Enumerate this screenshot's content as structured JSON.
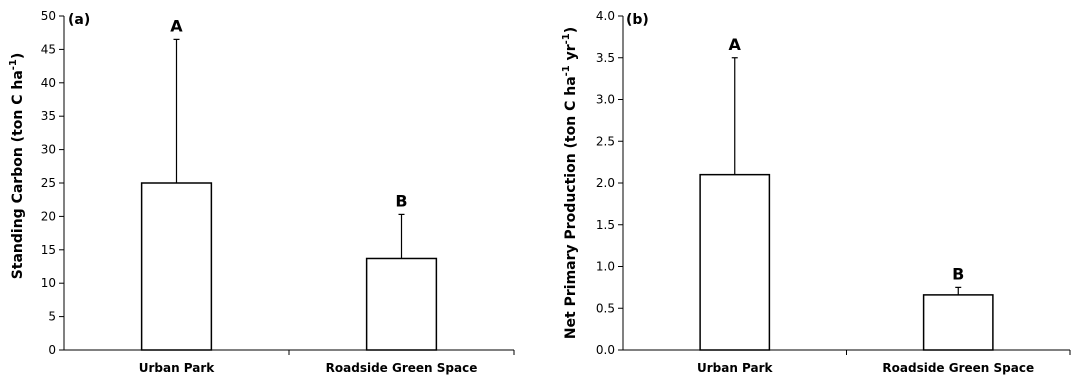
{
  "chart_data": [
    {
      "type": "bar",
      "panel_label": "(a)",
      "categories": [
        "Urban Park",
        "Roadside Green Space"
      ],
      "values": [
        25.0,
        13.7
      ],
      "error_upper": [
        46.5,
        20.3
      ],
      "significance_letters": [
        "A",
        "B"
      ],
      "ylabel": {
        "main": "Standing Carbon (ton C ha",
        "sup": "-1",
        "tail": ")"
      },
      "ylim": [
        0,
        50
      ],
      "yticks": [
        "0",
        "5",
        "10",
        "15",
        "20",
        "25",
        "30",
        "35",
        "40",
        "45",
        "50"
      ],
      "bar_fill": "#ffffff",
      "bar_stroke": "#000000"
    },
    {
      "type": "bar",
      "panel_label": "(b)",
      "categories": [
        "Urban Park",
        "Roadside Green Space"
      ],
      "values": [
        2.1,
        0.66
      ],
      "error_upper": [
        3.5,
        0.75
      ],
      "significance_letters": [
        "A",
        "B"
      ],
      "ylabel": {
        "main": "Net Primary Production (ton C ha",
        "sup": "-1",
        "mid": " yr",
        "sup2": "-1",
        "tail": ")"
      },
      "ylim": [
        0,
        4.0
      ],
      "yticks": [
        "0.0",
        "0.5",
        "1.0",
        "1.5",
        "2.0",
        "2.5",
        "3.0",
        "3.5",
        "4.0"
      ],
      "bar_fill": "#ffffff",
      "bar_stroke": "#000000"
    }
  ]
}
